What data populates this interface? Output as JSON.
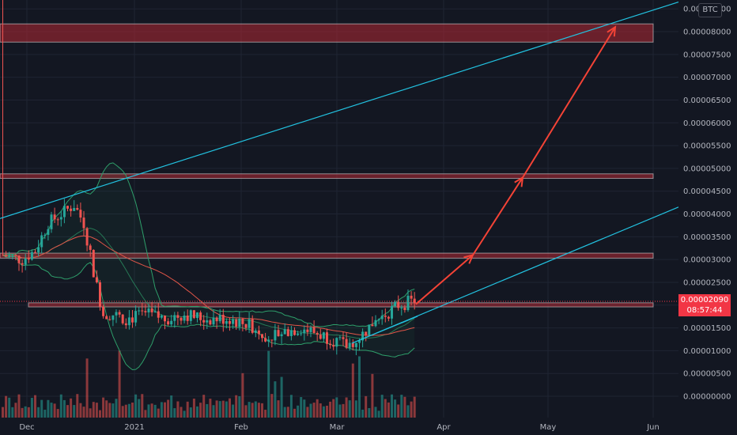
{
  "chart_data": {
    "type": "candlestick",
    "quote_currency": "BTC",
    "y_axis_labels": [
      "0.00008000",
      "0.00007500",
      "0.00007000",
      "0.00006500",
      "0.00006000",
      "0.00005500",
      "0.00005000",
      "0.00004500",
      "0.00004000",
      "0.00003500",
      "0.00003000",
      "0.00002500",
      "0.00002000",
      "0.00001500",
      "0.00001000",
      "0.00000500",
      "0.00000000"
    ],
    "y_axis_top_partial": "0.00008500",
    "y_range": [
      0.0,
      8.55e-05
    ],
    "x_axis_labels": [
      "Dec",
      "2021",
      "Feb",
      "Mar",
      "Apr",
      "May",
      "Jun"
    ],
    "last_price": "0.00002090",
    "countdown": "08:57:44",
    "resistance_zones": [
      {
        "low": 7.77e-05,
        "high": 8.17e-05
      },
      {
        "low": 4.78e-05,
        "high": 4.88e-05
      },
      {
        "low": 3.03e-05,
        "high": 3.14e-05
      },
      {
        "low": 1.96e-05,
        "high": 2.05e-05
      }
    ],
    "projection_path": [
      2.02e-05,
      3.1e-05,
      4.8e-05,
      8.1e-05
    ],
    "channel_upper": [
      3.9e-05,
      8.65e-05
    ],
    "channel_lower": [
      1.72e-05,
      4.15e-05
    ],
    "gridlines": true,
    "colors": {
      "up": "#26a69a",
      "down": "#ef5350",
      "zone": "#b22833",
      "channel": "#22c2e0",
      "arrow": "#f44336",
      "bands": "#2e9e6a",
      "ma": "#e05548"
    }
  }
}
